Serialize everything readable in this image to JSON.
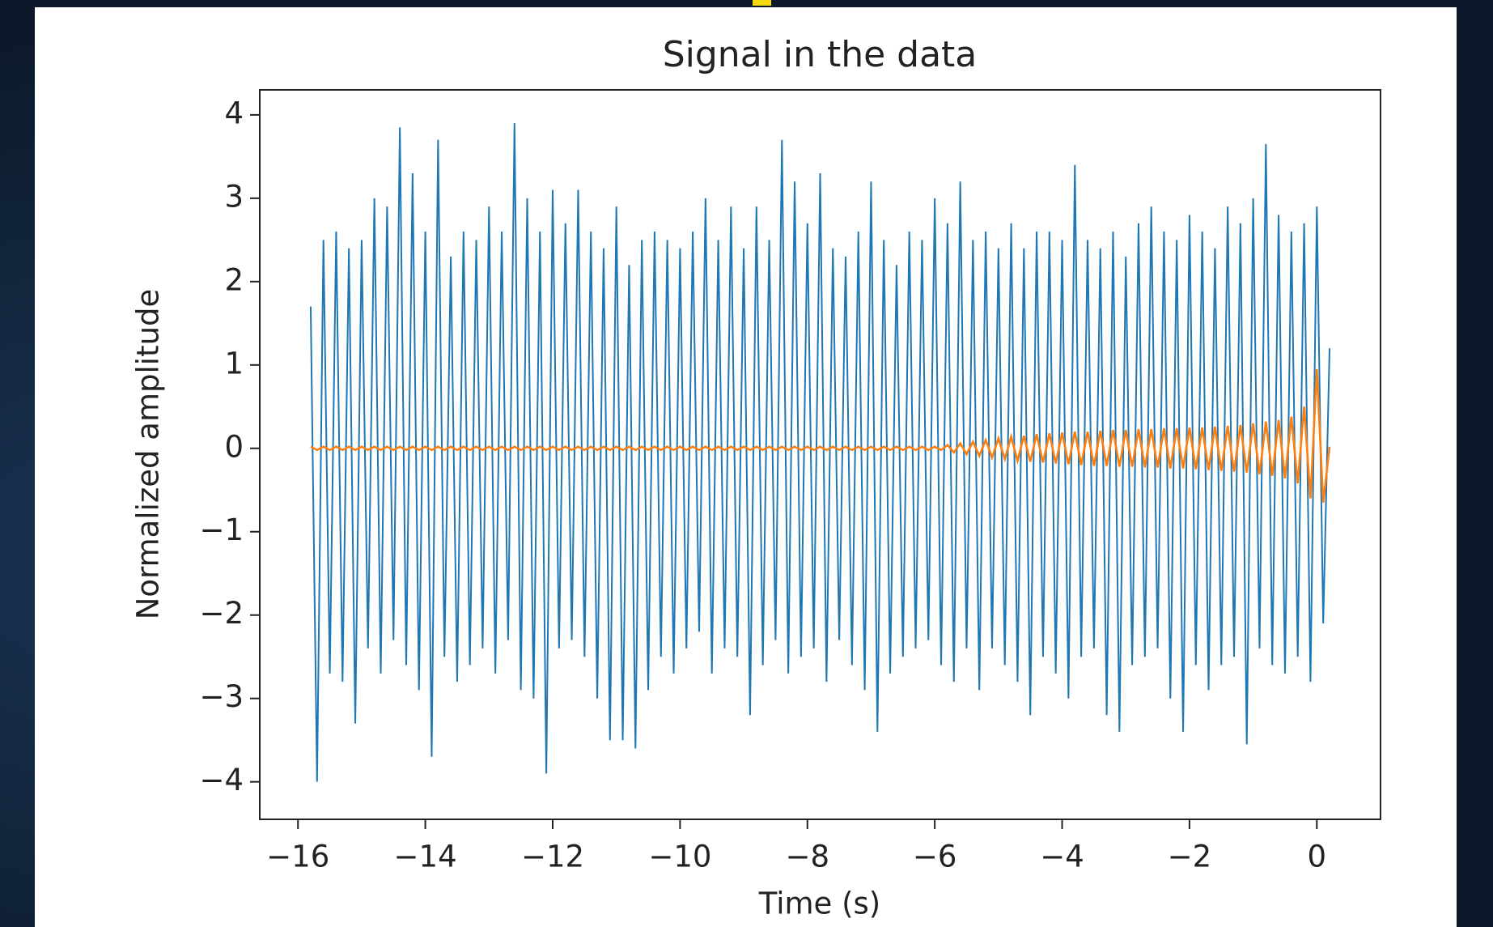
{
  "chart_data": {
    "type": "line",
    "title": "Signal in the data",
    "x_label": "Time (s)",
    "y_label": "Normalized amplitude",
    "x": [
      -15.8,
      -15.7,
      -15.6,
      -15.5,
      -15.4,
      -15.3,
      -15.2,
      -15.1,
      -15,
      -14.9,
      -14.8,
      -14.7,
      -14.6,
      -14.5,
      -14.4,
      -14.3,
      -14.2,
      -14.1,
      -14,
      -13.9,
      -13.8,
      -13.7,
      -13.6,
      -13.5,
      -13.4,
      -13.3,
      -13.2,
      -13.1,
      -13,
      -12.9,
      -12.8,
      -12.7,
      -12.6,
      -12.5,
      -12.4,
      -12.3,
      -12.2,
      -12.1,
      -12,
      -11.9,
      -11.8,
      -11.7,
      -11.6,
      -11.5,
      -11.4,
      -11.3,
      -11.2,
      -11.1,
      -11,
      -10.9,
      -10.8,
      -10.7,
      -10.6,
      -10.5,
      -10.4,
      -10.3,
      -10.2,
      -10.1,
      -10,
      -9.9,
      -9.8,
      -9.7,
      -9.6,
      -9.5,
      -9.4,
      -9.3,
      -9.2,
      -9.1,
      -9,
      -8.9,
      -8.8,
      -8.7,
      -8.6,
      -8.5,
      -8.4,
      -8.3,
      -8.2,
      -8.1,
      -8,
      -7.9,
      -7.8,
      -7.7,
      -7.6,
      -7.5,
      -7.4,
      -7.3,
      -7.2,
      -7.1,
      -7,
      -6.9,
      -6.8,
      -6.7,
      -6.6,
      -6.5,
      -6.4,
      -6.3,
      -6.2,
      -6.1,
      -6,
      -5.9,
      -5.8,
      -5.7,
      -5.6,
      -5.5,
      -5.4,
      -5.3,
      -5.2,
      -5.1,
      -5,
      -4.9,
      -4.8,
      -4.7,
      -4.6,
      -4.5,
      -4.4,
      -4.3,
      -4.2,
      -4.1,
      -4,
      -3.9,
      -3.8,
      -3.7,
      -3.6,
      -3.5,
      -3.4,
      -3.3,
      -3.2,
      -3.1,
      -3,
      -2.9,
      -2.8,
      -2.7,
      -2.6,
      -2.5,
      -2.4,
      -2.3,
      -2.2,
      -2.1,
      -2,
      -1.9,
      -1.8,
      -1.7,
      -1.6,
      -1.5,
      -1.4,
      -1.3,
      -1.2,
      -1.1,
      -1,
      -0.9,
      -0.8,
      -0.7,
      -0.6,
      -0.5,
      -0.4,
      -0.3,
      -0.2,
      -0.1,
      0,
      0.1,
      0.2
    ],
    "series": [
      {
        "color": "#1f77b4",
        "values": [
          1.7,
          -4.0,
          2.5,
          -2.7,
          2.6,
          -2.8,
          2.4,
          -3.3,
          2.5,
          -2.4,
          3.0,
          -2.7,
          2.9,
          -2.3,
          3.85,
          -2.6,
          3.3,
          -2.9,
          2.6,
          -3.7,
          3.7,
          -2.5,
          2.3,
          -2.8,
          2.6,
          -2.6,
          2.5,
          -2.4,
          2.9,
          -2.7,
          2.6,
          -2.3,
          3.9,
          -2.9,
          3.0,
          -3.0,
          2.6,
          -3.9,
          3.1,
          -2.4,
          2.7,
          -2.3,
          3.1,
          -2.5,
          2.6,
          -3.0,
          2.4,
          -3.5,
          2.9,
          -3.5,
          2.2,
          -3.6,
          2.5,
          -2.9,
          2.6,
          -2.5,
          2.5,
          -2.7,
          2.4,
          -2.4,
          2.6,
          -2.2,
          3.0,
          -2.7,
          2.5,
          -2.4,
          2.9,
          -2.5,
          2.4,
          -3.2,
          2.9,
          -2.6,
          2.5,
          -2.3,
          3.7,
          -2.7,
          3.2,
          -2.5,
          2.7,
          -2.4,
          3.3,
          -2.8,
          2.4,
          -2.3,
          2.3,
          -2.6,
          2.6,
          -2.9,
          3.2,
          -3.4,
          2.5,
          -2.7,
          2.2,
          -2.5,
          2.6,
          -2.4,
          2.5,
          -2.3,
          3.0,
          -2.6,
          2.7,
          -2.8,
          3.2,
          -2.4,
          2.5,
          -2.9,
          2.6,
          -2.4,
          2.4,
          -2.6,
          2.7,
          -2.8,
          2.4,
          -3.2,
          2.6,
          -2.5,
          2.6,
          -2.7,
          2.5,
          -3.0,
          3.4,
          -2.5,
          2.5,
          -2.4,
          2.4,
          -3.2,
          2.6,
          -3.4,
          2.3,
          -2.6,
          2.7,
          -2.5,
          2.9,
          -2.4,
          2.6,
          -3.0,
          2.5,
          -3.4,
          2.8,
          -2.6,
          2.6,
          -2.9,
          2.4,
          -2.6,
          2.9,
          -2.5,
          2.7,
          -3.55,
          3.0,
          -2.4,
          3.65,
          -2.6,
          2.8,
          -2.7,
          2.6,
          -2.5,
          2.7,
          -2.8,
          2.9,
          -2.1,
          1.2
        ]
      },
      {
        "color": "#ff7f0e",
        "values": [
          0.02,
          -0.02,
          0.02,
          -0.02,
          0.02,
          -0.02,
          0.02,
          -0.02,
          0.02,
          -0.02,
          0.02,
          -0.02,
          0.02,
          -0.02,
          0.02,
          -0.02,
          0.02,
          -0.02,
          0.02,
          -0.02,
          0.02,
          -0.02,
          0.02,
          -0.02,
          0.02,
          -0.02,
          0.02,
          -0.02,
          0.02,
          -0.02,
          0.02,
          -0.02,
          0.02,
          -0.02,
          0.02,
          -0.02,
          0.02,
          -0.02,
          0.02,
          -0.02,
          0.02,
          -0.02,
          0.02,
          -0.02,
          0.02,
          -0.02,
          0.02,
          -0.02,
          0.02,
          -0.02,
          0.02,
          -0.02,
          0.02,
          -0.02,
          0.02,
          -0.02,
          0.02,
          -0.02,
          0.02,
          -0.02,
          0.02,
          -0.02,
          0.02,
          -0.02,
          0.02,
          -0.02,
          0.02,
          -0.02,
          0.02,
          -0.02,
          0.02,
          -0.02,
          0.02,
          -0.02,
          0.02,
          -0.02,
          0.02,
          -0.02,
          0.02,
          -0.02,
          0.02,
          -0.02,
          0.02,
          -0.02,
          0.02,
          -0.02,
          0.02,
          -0.02,
          0.02,
          -0.02,
          0.02,
          -0.02,
          0.02,
          -0.02,
          0.02,
          -0.02,
          0.02,
          -0.02,
          0.02,
          -0.02,
          0.04,
          -0.05,
          0.06,
          -0.07,
          0.08,
          -0.09,
          0.1,
          -0.11,
          0.12,
          -0.13,
          0.14,
          -0.15,
          0.15,
          -0.16,
          0.17,
          -0.17,
          0.18,
          -0.18,
          0.19,
          -0.19,
          0.2,
          -0.2,
          0.2,
          -0.21,
          0.21,
          -0.21,
          0.22,
          -0.22,
          0.22,
          -0.22,
          0.23,
          -0.23,
          0.23,
          -0.23,
          0.24,
          -0.24,
          0.24,
          -0.24,
          0.25,
          -0.25,
          0.25,
          -0.26,
          0.26,
          -0.27,
          0.27,
          -0.28,
          0.28,
          -0.29,
          0.3,
          -0.31,
          0.32,
          -0.33,
          0.34,
          -0.36,
          0.38,
          -0.42,
          0.5,
          -0.6,
          0.95,
          -0.65,
          0.02
        ]
      }
    ],
    "xlim": [
      -16.6,
      1.0
    ],
    "ylim": [
      -4.45,
      4.3
    ],
    "xticks": [
      {
        "value": -16,
        "label": "−16"
      },
      {
        "value": -14,
        "label": "−14"
      },
      {
        "value": -12,
        "label": "−12"
      },
      {
        "value": -10,
        "label": "−10"
      },
      {
        "value": -8,
        "label": "−8"
      },
      {
        "value": -6,
        "label": "−6"
      },
      {
        "value": -4,
        "label": "−4"
      },
      {
        "value": -2,
        "label": "−2"
      },
      0
    ],
    "yticks": [
      {
        "value": -4,
        "label": "−4"
      },
      {
        "value": -3,
        "label": "−3"
      },
      {
        "value": -2,
        "label": "−2"
      },
      {
        "value": -1,
        "label": "−1"
      },
      0,
      1,
      2,
      3,
      4
    ],
    "grid": false
  }
}
